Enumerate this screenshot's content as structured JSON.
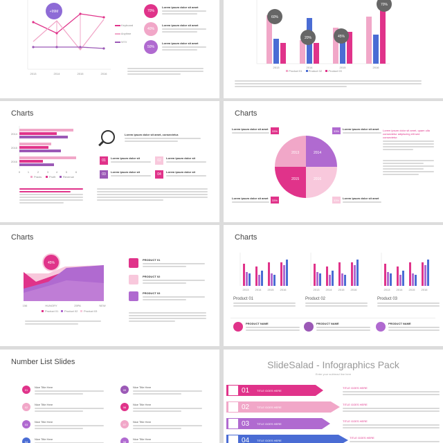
{
  "colors": {
    "magenta": "#e0338a",
    "pink": "#f1a7c8",
    "purple": "#9b59b6",
    "blue": "#4a6cd4",
    "violet": "#b06ad0",
    "lightpink": "#f8c8dc"
  },
  "slide1": {
    "bubble": "+99M",
    "legend": [
      "Keyboard",
      "Anytime",
      "NYV"
    ],
    "x_labels": [
      "2013",
      "2014",
      "2015",
      "2016"
    ],
    "percents": [
      "70%",
      "40%",
      "50%"
    ],
    "item_title": "Lorem ipsum dolor sit amet"
  },
  "slide2": {
    "bubbles": [
      "60%",
      "20%",
      "45%",
      "70%"
    ],
    "x_labels": [
      "2013",
      "2014",
      "2015",
      "2016"
    ],
    "legend": [
      "Product 01",
      "Product 02",
      "Product 03"
    ]
  },
  "slide3": {
    "title": "Charts",
    "y_labels": [
      "2014",
      "2015",
      "2016"
    ],
    "x_labels": [
      "0",
      "1",
      "2",
      "3",
      "4",
      "5",
      "6"
    ],
    "legend": [
      "Praxis",
      "Profit",
      "Revenue"
    ],
    "heading": "Lorem ipsum dolor sit amet, consectetur.",
    "boxes": [
      "01",
      "02",
      "03",
      "04"
    ],
    "box_title": "Lorem ipsum dolor sit"
  },
  "slide4": {
    "title": "Charts",
    "pie_labels": [
      "2013",
      "2014",
      "2015",
      "2016"
    ],
    "callouts": [
      "33%",
      "33%",
      "33%",
      "33%"
    ],
    "callout_title": "Lorem ipsum dolor sit amet",
    "side_heading": "Lorem ipsum dolor sit amet, quam ulla consectetur adipiscing elit sed consectetur."
  },
  "slide5": {
    "title": "Charts",
    "bubble": "45%",
    "x_labels": [
      "156",
      "HUNGRY",
      "25PA",
      "NEW"
    ],
    "legend": [
      "Product 01",
      "Product 02",
      "Product 03"
    ],
    "products": [
      "PRODUCT 01",
      "PRODUCT 02",
      "PRODUCT 03"
    ]
  },
  "slide6": {
    "title": "Charts",
    "x_labels": [
      "2013",
      "2014",
      "2015",
      "2016"
    ],
    "products": [
      "Product 01",
      "Product 02",
      "Product 03"
    ],
    "names": [
      "PRODUCT NAME",
      "PRODUCT NAME",
      "PRODUCT NAME"
    ]
  },
  "slide7": {
    "title": "Number List Slides",
    "items": [
      {
        "num": "01",
        "title": "Nice Title Here"
      },
      {
        "num": "02",
        "title": "Nice Title Here"
      },
      {
        "num": "03",
        "title": "Nice Title Here"
      },
      {
        "num": "04",
        "title": "Nice Title Here"
      },
      {
        "num": "05",
        "title": "Nice Title Here"
      },
      {
        "num": "06",
        "title": "Nice Title Here"
      },
      {
        "num": "07",
        "title": "Nice Title Here"
      },
      {
        "num": "08",
        "title": "Nice Title Here"
      }
    ]
  },
  "slide8": {
    "title": "SlideSalad - Infographics Pack",
    "subtitle": "Enter your subhead line here",
    "bars": [
      {
        "num": "01",
        "label": "TITLE GOES HERE",
        "side": "TITLE GOES HERE"
      },
      {
        "num": "02",
        "label": "TITLE GOES HERE",
        "side": "TITLE GOES HERE"
      },
      {
        "num": "03",
        "label": "TITLE GOES HERE",
        "side": "TITLE GOES HERE"
      },
      {
        "num": "04",
        "label": "TITLE GOES HERE",
        "side": "TITLE GOES HERE"
      }
    ]
  }
}
